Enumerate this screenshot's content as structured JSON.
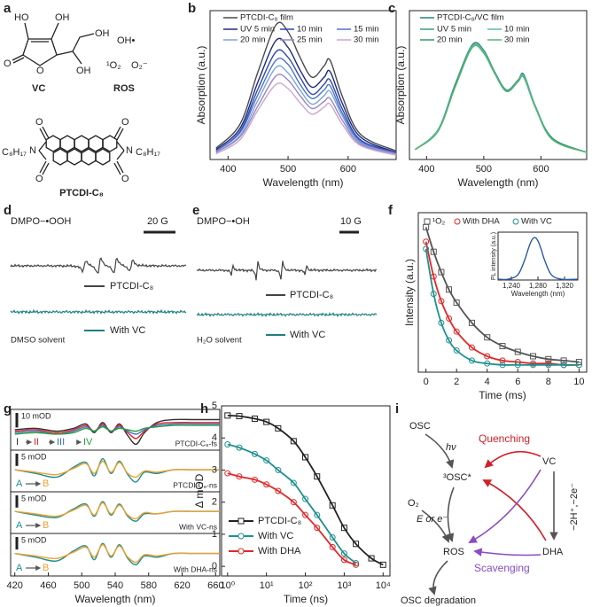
{
  "panel_labels": [
    "a",
    "b",
    "c",
    "d",
    "e",
    "f",
    "g",
    "h",
    "i"
  ],
  "structures": {
    "vc_atoms": [
      "HO",
      "OH",
      "O",
      "O",
      "OH",
      "OH"
    ],
    "vc_name": "VC",
    "ros_name": "ROS",
    "ros_species": [
      "OH•",
      "¹O₂",
      "O₂⁻"
    ],
    "ptcdi_atoms": [
      "O",
      "O",
      "N",
      "N",
      "O",
      "O"
    ],
    "ptcdi_chains": [
      "C₈H₁₇",
      "C₈H₁₇"
    ],
    "ptcdi_name": "PTCDI-C₈"
  },
  "epr": [
    {
      "title": "DMPO−•OOH",
      "scale": "20 G",
      "traces": [
        "PTCDI-C₈",
        "With VC"
      ],
      "solvent": "DMSO solvent"
    },
    {
      "title": "DMPO−•OH",
      "scale": "10 G",
      "traces": [
        "PTCDI-C₈",
        "With VC"
      ],
      "solvent": "H₂O solvent"
    }
  ],
  "diagram": {
    "nodes": [
      "OSC",
      "³OSC*",
      "VC",
      "O₂",
      "ROS",
      "DHA",
      "OSC degradation"
    ],
    "edge_labels": [
      "hν",
      "Quenching",
      "E or e⁻",
      "−2H⁺,−2e⁻",
      "Scavenging"
    ]
  },
  "chart_data": [
    {
      "type": "line",
      "xlabel": "Wavelength (nm)",
      "ylabel": "Absorption (a.u.)",
      "x": [
        380,
        420,
        450,
        480,
        500,
        520,
        540,
        560,
        570,
        590,
        620,
        680
      ],
      "xlim": [
        370,
        680
      ],
      "xticks": [
        400,
        500,
        600
      ],
      "ylim": [
        0,
        1.05
      ],
      "series": [
        {
          "name": "PTCDI-C₈ film",
          "color": "#4a4a4a",
          "values": [
            0.08,
            0.25,
            0.62,
            0.95,
            0.9,
            0.72,
            0.58,
            0.66,
            0.7,
            0.45,
            0.18,
            0.06
          ]
        },
        {
          "name": "UV 5 min",
          "color": "#1a2a80",
          "values": [
            0.07,
            0.22,
            0.55,
            0.84,
            0.79,
            0.63,
            0.51,
            0.58,
            0.62,
            0.4,
            0.16,
            0.05
          ]
        },
        {
          "name": "10 min",
          "color": "#3346b0",
          "values": [
            0.06,
            0.2,
            0.5,
            0.76,
            0.72,
            0.58,
            0.46,
            0.53,
            0.56,
            0.36,
            0.14,
            0.05
          ]
        },
        {
          "name": "15 min",
          "color": "#4f74c8",
          "values": [
            0.06,
            0.19,
            0.46,
            0.7,
            0.67,
            0.53,
            0.43,
            0.49,
            0.52,
            0.33,
            0.13,
            0.04
          ]
        },
        {
          "name": "20 min",
          "color": "#79a6da",
          "values": [
            0.05,
            0.17,
            0.42,
            0.65,
            0.61,
            0.49,
            0.39,
            0.45,
            0.48,
            0.31,
            0.12,
            0.04
          ]
        },
        {
          "name": "25 min",
          "color": "#9a86c4",
          "values": [
            0.05,
            0.16,
            0.38,
            0.59,
            0.56,
            0.45,
            0.36,
            0.41,
            0.43,
            0.28,
            0.11,
            0.04
          ]
        },
        {
          "name": "30 min",
          "color": "#c9a6cf",
          "values": [
            0.04,
            0.14,
            0.35,
            0.53,
            0.5,
            0.4,
            0.32,
            0.37,
            0.39,
            0.25,
            0.1,
            0.03
          ]
        }
      ]
    },
    {
      "type": "line",
      "xlabel": "Wavelength (nm)",
      "ylabel": "Absorption (a.u.)",
      "x": [
        380,
        420,
        450,
        480,
        500,
        520,
        540,
        560,
        570,
        590,
        620,
        680
      ],
      "xlim": [
        370,
        680
      ],
      "xticks": [
        400,
        500,
        600
      ],
      "ylim": [
        0,
        1.05
      ],
      "series": [
        {
          "name": "PTCDI-C₈/VC film",
          "color": "#2b7f80",
          "values": [
            0.07,
            0.21,
            0.53,
            0.81,
            0.77,
            0.61,
            0.49,
            0.56,
            0.6,
            0.38,
            0.15,
            0.05
          ]
        },
        {
          "name": "UV 5 min",
          "color": "#37a07a",
          "values": [
            0.07,
            0.21,
            0.53,
            0.8,
            0.76,
            0.61,
            0.49,
            0.56,
            0.59,
            0.38,
            0.15,
            0.05
          ]
        },
        {
          "name": "10 min",
          "color": "#5bbfa0",
          "values": [
            0.07,
            0.21,
            0.52,
            0.8,
            0.76,
            0.6,
            0.48,
            0.55,
            0.59,
            0.38,
            0.15,
            0.05
          ]
        },
        {
          "name": "20 min",
          "color": "#2f9a68",
          "values": [
            0.07,
            0.2,
            0.52,
            0.79,
            0.75,
            0.6,
            0.48,
            0.55,
            0.58,
            0.37,
            0.15,
            0.05
          ]
        },
        {
          "name": "30 min",
          "color": "#5ab47c",
          "values": [
            0.07,
            0.2,
            0.51,
            0.79,
            0.75,
            0.6,
            0.48,
            0.55,
            0.58,
            0.37,
            0.14,
            0.05
          ]
        }
      ]
    },
    {
      "type": "scatter",
      "xlabel": "Time (ms)",
      "ylabel": "Intensity (a.u.)",
      "x": [
        0,
        0.5,
        1,
        1.5,
        2,
        3,
        4,
        5,
        6,
        7,
        8,
        9,
        10
      ],
      "xlim": [
        -0.5,
        10.5
      ],
      "xticks": [
        0,
        2,
        4,
        6,
        8,
        10
      ],
      "ylim": [
        0,
        1.1
      ],
      "series": [
        {
          "name": "¹O₂",
          "color": "#555555",
          "marker": "square",
          "values": [
            1.0,
            0.83,
            0.69,
            0.57,
            0.48,
            0.34,
            0.24,
            0.18,
            0.14,
            0.11,
            0.09,
            0.08,
            0.07
          ]
        },
        {
          "name": "With DHA",
          "color": "#e02828",
          "marker": "circle",
          "values": [
            0.9,
            0.66,
            0.49,
            0.37,
            0.28,
            0.17,
            0.11,
            0.08,
            0.07,
            0.06,
            0.06,
            0.05,
            0.05
          ]
        },
        {
          "name": "With VC",
          "color": "#1f8f8f",
          "marker": "circle",
          "values": [
            0.85,
            0.54,
            0.34,
            0.22,
            0.15,
            0.08,
            0.06,
            0.05,
            0.05,
            0.05,
            0.05,
            0.05,
            0.05
          ]
        }
      ]
    },
    {
      "type": "line",
      "xlabel": "Wavelength (nm)",
      "ylabel": "PL intensity (a.u.)",
      "x": [
        1220,
        1235,
        1250,
        1260,
        1265,
        1270,
        1275,
        1280,
        1285,
        1290,
        1300,
        1315,
        1340
      ],
      "xlim": [
        1220,
        1340
      ],
      "xticks": [
        {
          "value": 1240,
          "label": "1,240"
        },
        {
          "value": 1280,
          "label": "1,280"
        },
        {
          "value": 1320,
          "label": "1,320"
        }
      ],
      "ylim": [
        0,
        1.15
      ],
      "series": [
        {
          "color": "#2a5aa0",
          "values": [
            0.02,
            0.02,
            0.13,
            0.48,
            0.73,
            0.94,
            1.02,
            0.94,
            0.73,
            0.48,
            0.13,
            0.02,
            0.02
          ]
        }
      ]
    },
    {
      "type": "line",
      "subtitle": "PTCDI-C₈-fs",
      "scale_bar": {
        "value": 10,
        "label": "10 mOD"
      },
      "x": [
        420,
        445,
        470,
        490,
        505,
        515,
        525,
        535,
        545,
        555,
        565,
        575,
        590,
        610,
        635,
        665
      ],
      "xlim": [
        415,
        665
      ],
      "ylim": [
        -16,
        12
      ],
      "series": [
        {
          "name": "I",
          "color": "#333333",
          "values": [
            -2,
            -1,
            -3,
            -1,
            2,
            -4,
            3,
            -4,
            2,
            -6,
            -12,
            -4,
            3,
            5,
            5,
            5
          ]
        },
        {
          "name": "II",
          "color": "#e02828",
          "values": [
            -3,
            -2,
            -4,
            -2,
            1,
            -3,
            2,
            -3,
            1,
            -4,
            -8,
            -3,
            2,
            3,
            3,
            3
          ]
        },
        {
          "name": "III",
          "color": "#3a6fc8",
          "values": [
            -4,
            -3,
            -5,
            -3,
            0,
            -3,
            1,
            -3,
            0,
            -3,
            -5,
            -2,
            1,
            2,
            2,
            2
          ]
        },
        {
          "name": "IV",
          "color": "#2a9a3a",
          "values": [
            -5,
            -4,
            -5,
            -4,
            -1,
            -3,
            0,
            -3,
            -1,
            -2,
            -3,
            -1,
            0,
            1,
            1,
            1
          ]
        }
      ]
    },
    {
      "type": "line",
      "subtitle": "PTCDI-C₈-ns",
      "scale_bar": {
        "value": 5,
        "label": "5 mOD"
      },
      "x": [
        420,
        445,
        470,
        490,
        505,
        515,
        525,
        535,
        545,
        555,
        565,
        575,
        590,
        610,
        635,
        665
      ],
      "xlim": [
        415,
        665
      ],
      "ylim": [
        -9,
        8
      ],
      "series": [
        {
          "name": "A",
          "color": "#1f8f8f",
          "values": [
            0,
            -1.5,
            -3,
            1,
            3,
            -2.5,
            4.5,
            -1.5,
            3.5,
            -2,
            -5,
            -1,
            -1.5,
            0,
            0,
            0
          ]
        },
        {
          "name": "B",
          "color": "#f0a030",
          "values": [
            0,
            -1,
            -2,
            0.5,
            2.5,
            -1.5,
            3.5,
            -1,
            3,
            -1.5,
            -3,
            -0.5,
            -1,
            0,
            0,
            0
          ]
        }
      ]
    },
    {
      "type": "line",
      "subtitle": "With VC-ns",
      "scale_bar": {
        "value": 5,
        "label": "5 mOD"
      },
      "x": [
        420,
        445,
        470,
        490,
        505,
        515,
        525,
        535,
        545,
        555,
        565,
        575,
        590,
        610,
        635,
        665
      ],
      "xlim": [
        415,
        665
      ],
      "ylim": [
        -9,
        8
      ],
      "series": [
        {
          "name": "A",
          "color": "#1f8f8f",
          "values": [
            0,
            -1.5,
            -2.5,
            1,
            3,
            -2,
            4,
            -1.5,
            3,
            -2,
            -4,
            -1,
            -1,
            0,
            0,
            0
          ]
        },
        {
          "name": "B",
          "color": "#f0a030",
          "values": [
            0,
            -1,
            -2,
            0.5,
            2.5,
            -1.5,
            3.5,
            -1,
            2.5,
            -1.5,
            -3,
            -0.5,
            -1,
            0,
            0,
            0
          ]
        }
      ]
    },
    {
      "type": "line",
      "subtitle": "With DHA-ns",
      "scale_bar": {
        "value": 5,
        "label": "5 mOD"
      },
      "xlabel": "Wavelength (nm)",
      "x": [
        420,
        445,
        470,
        490,
        505,
        515,
        525,
        535,
        545,
        555,
        565,
        575,
        590,
        610,
        635,
        665
      ],
      "xlim": [
        415,
        665
      ],
      "xticks": [
        420,
        460,
        500,
        540,
        580,
        620,
        660
      ],
      "ylim": [
        -9,
        8
      ],
      "series": [
        {
          "name": "A",
          "color": "#1f8f8f",
          "values": [
            0,
            -1.5,
            -3,
            1,
            3,
            -2.5,
            4,
            -1.5,
            3.5,
            -2,
            -4.5,
            -1,
            -1.5,
            0,
            0,
            0
          ]
        },
        {
          "name": "B",
          "color": "#f0a030",
          "values": [
            0,
            -1,
            -2,
            0.5,
            2.5,
            -1.5,
            3.5,
            -1,
            3,
            -1.5,
            -3.5,
            -0.5,
            -1,
            0,
            0,
            0
          ]
        }
      ]
    },
    {
      "type": "scatter",
      "xlog": true,
      "xlabel": "Time (ns)",
      "ylabel": "Δ mOD",
      "x": [
        1,
        2,
        5,
        10,
        20,
        50,
        100,
        200,
        500,
        1000,
        2000,
        5000,
        10000
      ],
      "xlim": [
        0.7,
        15000
      ],
      "xticks": [
        {
          "value": 1,
          "label": "10⁰"
        },
        {
          "value": 10,
          "label": "10¹"
        },
        {
          "value": 100,
          "label": "10²"
        },
        {
          "value": 1000,
          "label": "10³"
        },
        {
          "value": 10000,
          "label": "10⁴"
        }
      ],
      "ylim": [
        -0.3,
        5
      ],
      "yticks": [
        0,
        1,
        2,
        3,
        4,
        5
      ],
      "series": [
        {
          "name": "PTCDI-C₈",
          "color": "#222222",
          "marker": "square",
          "values": [
            4.7,
            4.68,
            4.6,
            4.5,
            4.3,
            3.9,
            3.4,
            2.8,
            1.9,
            1.2,
            0.7,
            0.25,
            0.05
          ]
        },
        {
          "name": "With VC",
          "color": "#1f8f8f",
          "marker": "circle",
          "values": [
            3.8,
            3.7,
            3.5,
            3.3,
            3.0,
            2.6,
            2.1,
            1.6,
            0.9,
            0.4,
            0.1,
            null,
            null
          ]
        },
        {
          "name": "With DHA",
          "color": "#e02828",
          "marker": "circle",
          "values": [
            2.9,
            2.8,
            2.7,
            2.55,
            2.35,
            2.0,
            1.6,
            1.2,
            0.6,
            0.2,
            0.05,
            null,
            null
          ]
        }
      ]
    }
  ]
}
